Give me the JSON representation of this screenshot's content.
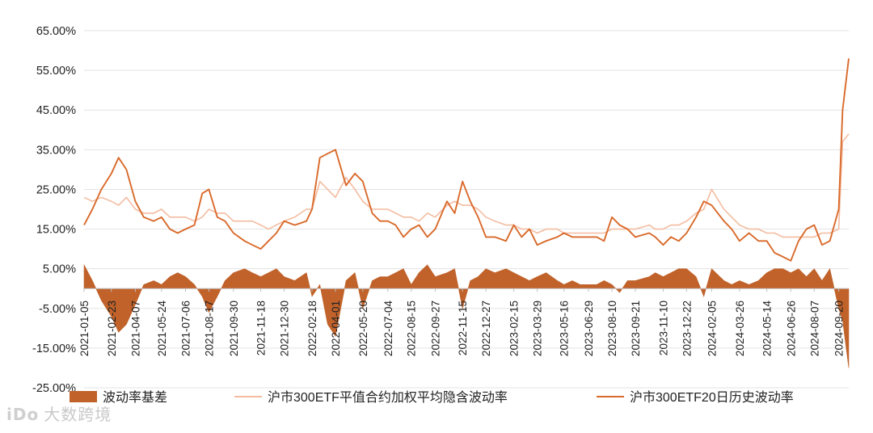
{
  "watermark": {
    "icon": "iDo-logo",
    "text": "大数跨境"
  },
  "chart_data": {
    "type": "line",
    "title": "",
    "xlabel": "",
    "ylabel": "",
    "ylim": [
      -0.25,
      0.65
    ],
    "y_ticks": [
      "65.00%",
      "55.00%",
      "45.00%",
      "35.00%",
      "25.00%",
      "15.00%",
      "5.00%",
      "-5.00%",
      "-15.00%",
      "-25.00%"
    ],
    "x_tick_labels": [
      "2021-01-05",
      "2021-02-23",
      "2021-04-07",
      "2021-05-24",
      "2021-07-06",
      "2021-08-17",
      "2021-09-30",
      "2021-11-18",
      "2021-12-30",
      "2022-02-18",
      "2022-04-01",
      "2022-05-20",
      "2022-07-04",
      "2022-08-15",
      "2022-09-27",
      "2022-11-15",
      "2022-12-27",
      "2023-02-15",
      "2023-03-29",
      "2023-05-16",
      "2023-06-29",
      "2023-08-10",
      "2023-09-21",
      "2023-11-10",
      "2023-12-22",
      "2024-02-05",
      "2024-03-26",
      "2024-05-14",
      "2024-06-26",
      "2024-08-07",
      "2024-09-20"
    ],
    "grid": true,
    "legend_position": "bottom",
    "series": [
      {
        "name": "波动率基差",
        "kind": "area",
        "color": "#c0622a",
        "x": [
          "2021-01-05",
          "2021-01-20",
          "2021-02-05",
          "2021-02-23",
          "2021-03-08",
          "2021-03-22",
          "2021-04-07",
          "2021-04-22",
          "2021-05-10",
          "2021-05-24",
          "2021-06-08",
          "2021-06-22",
          "2021-07-06",
          "2021-07-22",
          "2021-08-05",
          "2021-08-17",
          "2021-09-01",
          "2021-09-15",
          "2021-09-30",
          "2021-10-20",
          "2021-11-03",
          "2021-11-18",
          "2021-12-02",
          "2021-12-16",
          "2021-12-30",
          "2022-01-18",
          "2022-02-08",
          "2022-02-18",
          "2022-03-04",
          "2022-03-18",
          "2022-04-01",
          "2022-04-20",
          "2022-05-06",
          "2022-05-20",
          "2022-06-06",
          "2022-06-20",
          "2022-07-04",
          "2022-07-18",
          "2022-08-01",
          "2022-08-15",
          "2022-08-29",
          "2022-09-13",
          "2022-09-27",
          "2022-10-18",
          "2022-11-01",
          "2022-11-15",
          "2022-11-29",
          "2022-12-13",
          "2022-12-27",
          "2023-01-12",
          "2023-02-01",
          "2023-02-15",
          "2023-03-01",
          "2023-03-15",
          "2023-03-29",
          "2023-04-14",
          "2023-05-04",
          "2023-05-16",
          "2023-05-31",
          "2023-06-14",
          "2023-06-29",
          "2023-07-14",
          "2023-07-27",
          "2023-08-10",
          "2023-08-24",
          "2023-09-07",
          "2023-09-21",
          "2023-10-16",
          "2023-10-27",
          "2023-11-10",
          "2023-11-24",
          "2023-12-08",
          "2023-12-22",
          "2024-01-08",
          "2024-01-22",
          "2024-02-05",
          "2024-02-27",
          "2024-03-12",
          "2024-03-26",
          "2024-04-12",
          "2024-04-29",
          "2024-05-14",
          "2024-05-28",
          "2024-06-12",
          "2024-06-26",
          "2024-07-10",
          "2024-07-24",
          "2024-08-07",
          "2024-08-21",
          "2024-09-04",
          "2024-09-20",
          "2024-09-27",
          "2024-10-08"
        ],
        "values": [
          0.06,
          0.02,
          -0.03,
          -0.07,
          -0.11,
          -0.09,
          -0.04,
          0.01,
          0.02,
          0.01,
          0.03,
          0.04,
          0.03,
          0.01,
          -0.02,
          -0.06,
          -0.02,
          0.02,
          0.04,
          0.05,
          0.04,
          0.03,
          0.04,
          0.05,
          0.03,
          0.02,
          0.04,
          -0.02,
          0.01,
          -0.09,
          -0.12,
          0.02,
          0.04,
          -0.05,
          0.02,
          0.03,
          0.03,
          0.04,
          0.05,
          0.01,
          0.04,
          0.06,
          0.03,
          0.04,
          0.05,
          -0.05,
          0.02,
          0.03,
          0.05,
          0.04,
          0.05,
          0.04,
          0.03,
          0.02,
          0.03,
          0.04,
          0.02,
          0.01,
          0.02,
          0.01,
          0.01,
          0.01,
          0.02,
          0.01,
          -0.01,
          0.02,
          0.02,
          0.03,
          0.04,
          0.03,
          0.04,
          0.05,
          0.05,
          0.03,
          -0.02,
          0.05,
          0.02,
          0.01,
          0.02,
          0.01,
          0.02,
          0.04,
          0.05,
          0.05,
          0.04,
          0.05,
          0.03,
          0.05,
          0.02,
          0.05,
          -0.05,
          -0.08,
          -0.2
        ]
      },
      {
        "name": "沪市300ETF平值合约加权平均隐含波动率",
        "kind": "line",
        "color": "#f3bca0",
        "x": [
          "2021-01-05",
          "2021-01-20",
          "2021-02-05",
          "2021-02-23",
          "2021-03-08",
          "2021-03-22",
          "2021-04-07",
          "2021-04-22",
          "2021-05-10",
          "2021-05-24",
          "2021-06-08",
          "2021-06-22",
          "2021-07-06",
          "2021-07-22",
          "2021-08-05",
          "2021-08-17",
          "2021-09-01",
          "2021-09-15",
          "2021-09-30",
          "2021-10-20",
          "2021-11-03",
          "2021-11-18",
          "2021-12-02",
          "2021-12-16",
          "2021-12-30",
          "2022-01-18",
          "2022-02-08",
          "2022-02-18",
          "2022-03-04",
          "2022-03-18",
          "2022-04-01",
          "2022-04-20",
          "2022-05-06",
          "2022-05-20",
          "2022-06-06",
          "2022-06-20",
          "2022-07-04",
          "2022-07-18",
          "2022-08-01",
          "2022-08-15",
          "2022-08-29",
          "2022-09-13",
          "2022-09-27",
          "2022-10-18",
          "2022-11-01",
          "2022-11-15",
          "2022-11-29",
          "2022-12-13",
          "2022-12-27",
          "2023-01-12",
          "2023-02-01",
          "2023-02-15",
          "2023-03-01",
          "2023-03-15",
          "2023-03-29",
          "2023-04-14",
          "2023-05-04",
          "2023-05-16",
          "2023-05-31",
          "2023-06-14",
          "2023-06-29",
          "2023-07-14",
          "2023-07-27",
          "2023-08-10",
          "2023-08-24",
          "2023-09-07",
          "2023-09-21",
          "2023-10-16",
          "2023-10-27",
          "2023-11-10",
          "2023-11-24",
          "2023-12-08",
          "2023-12-22",
          "2024-01-08",
          "2024-01-22",
          "2024-02-05",
          "2024-02-27",
          "2024-03-12",
          "2024-03-26",
          "2024-04-12",
          "2024-04-29",
          "2024-05-14",
          "2024-05-28",
          "2024-06-12",
          "2024-06-26",
          "2024-07-10",
          "2024-07-24",
          "2024-08-07",
          "2024-08-21",
          "2024-09-04",
          "2024-09-20",
          "2024-09-27",
          "2024-10-08"
        ],
        "values": [
          0.23,
          0.22,
          0.23,
          0.22,
          0.21,
          0.23,
          0.2,
          0.19,
          0.19,
          0.2,
          0.18,
          0.18,
          0.18,
          0.17,
          0.18,
          0.2,
          0.19,
          0.19,
          0.17,
          0.17,
          0.17,
          0.16,
          0.15,
          0.16,
          0.17,
          0.18,
          0.2,
          0.2,
          0.27,
          0.25,
          0.23,
          0.28,
          0.25,
          0.22,
          0.2,
          0.2,
          0.2,
          0.19,
          0.18,
          0.18,
          0.17,
          0.19,
          0.18,
          0.21,
          0.22,
          0.21,
          0.21,
          0.2,
          0.18,
          0.17,
          0.16,
          0.16,
          0.15,
          0.15,
          0.14,
          0.15,
          0.15,
          0.14,
          0.14,
          0.14,
          0.14,
          0.14,
          0.14,
          0.15,
          0.15,
          0.15,
          0.15,
          0.16,
          0.15,
          0.15,
          0.16,
          0.16,
          0.17,
          0.19,
          0.2,
          0.25,
          0.2,
          0.18,
          0.16,
          0.15,
          0.15,
          0.14,
          0.14,
          0.13,
          0.13,
          0.13,
          0.13,
          0.13,
          0.14,
          0.14,
          0.15,
          0.37,
          0.39
        ]
      },
      {
        "name": "沪市300ETF20日历史波动率",
        "kind": "line",
        "color": "#d96a2b",
        "x": [
          "2021-01-05",
          "2021-01-20",
          "2021-02-05",
          "2021-02-23",
          "2021-03-08",
          "2021-03-22",
          "2021-04-07",
          "2021-04-22",
          "2021-05-10",
          "2021-05-24",
          "2021-06-08",
          "2021-06-22",
          "2021-07-06",
          "2021-07-22",
          "2021-08-05",
          "2021-08-17",
          "2021-09-01",
          "2021-09-15",
          "2021-09-30",
          "2021-10-20",
          "2021-11-03",
          "2021-11-18",
          "2021-12-02",
          "2021-12-16",
          "2021-12-30",
          "2022-01-18",
          "2022-02-08",
          "2022-02-18",
          "2022-03-04",
          "2022-03-18",
          "2022-04-01",
          "2022-04-20",
          "2022-05-06",
          "2022-05-20",
          "2022-06-06",
          "2022-06-20",
          "2022-07-04",
          "2022-07-18",
          "2022-08-01",
          "2022-08-15",
          "2022-08-29",
          "2022-09-13",
          "2022-09-27",
          "2022-10-18",
          "2022-11-01",
          "2022-11-15",
          "2022-11-29",
          "2022-12-13",
          "2022-12-27",
          "2023-01-12",
          "2023-02-01",
          "2023-02-15",
          "2023-03-01",
          "2023-03-15",
          "2023-03-29",
          "2023-04-14",
          "2023-05-04",
          "2023-05-16",
          "2023-05-31",
          "2023-06-14",
          "2023-06-29",
          "2023-07-14",
          "2023-07-27",
          "2023-08-10",
          "2023-08-24",
          "2023-09-07",
          "2023-09-21",
          "2023-10-16",
          "2023-10-27",
          "2023-11-10",
          "2023-11-24",
          "2023-12-08",
          "2023-12-22",
          "2024-01-08",
          "2024-01-22",
          "2024-02-05",
          "2024-02-27",
          "2024-03-12",
          "2024-03-26",
          "2024-04-12",
          "2024-04-29",
          "2024-05-14",
          "2024-05-28",
          "2024-06-12",
          "2024-06-26",
          "2024-07-10",
          "2024-07-24",
          "2024-08-07",
          "2024-08-21",
          "2024-09-04",
          "2024-09-20",
          "2024-09-27",
          "2024-10-08"
        ],
        "values": [
          0.16,
          0.2,
          0.25,
          0.29,
          0.33,
          0.3,
          0.22,
          0.18,
          0.17,
          0.18,
          0.15,
          0.14,
          0.15,
          0.16,
          0.24,
          0.25,
          0.18,
          0.17,
          0.14,
          0.12,
          0.11,
          0.1,
          0.12,
          0.14,
          0.17,
          0.16,
          0.17,
          0.2,
          0.33,
          0.34,
          0.35,
          0.26,
          0.29,
          0.27,
          0.19,
          0.17,
          0.17,
          0.16,
          0.13,
          0.15,
          0.16,
          0.13,
          0.15,
          0.22,
          0.19,
          0.27,
          0.22,
          0.18,
          0.13,
          0.13,
          0.12,
          0.16,
          0.13,
          0.15,
          0.11,
          0.12,
          0.13,
          0.14,
          0.13,
          0.13,
          0.13,
          0.13,
          0.12,
          0.18,
          0.16,
          0.15,
          0.13,
          0.14,
          0.13,
          0.11,
          0.13,
          0.12,
          0.14,
          0.18,
          0.22,
          0.21,
          0.17,
          0.15,
          0.12,
          0.14,
          0.12,
          0.12,
          0.09,
          0.08,
          0.07,
          0.12,
          0.15,
          0.16,
          0.11,
          0.12,
          0.2,
          0.45,
          0.58
        ]
      }
    ]
  }
}
